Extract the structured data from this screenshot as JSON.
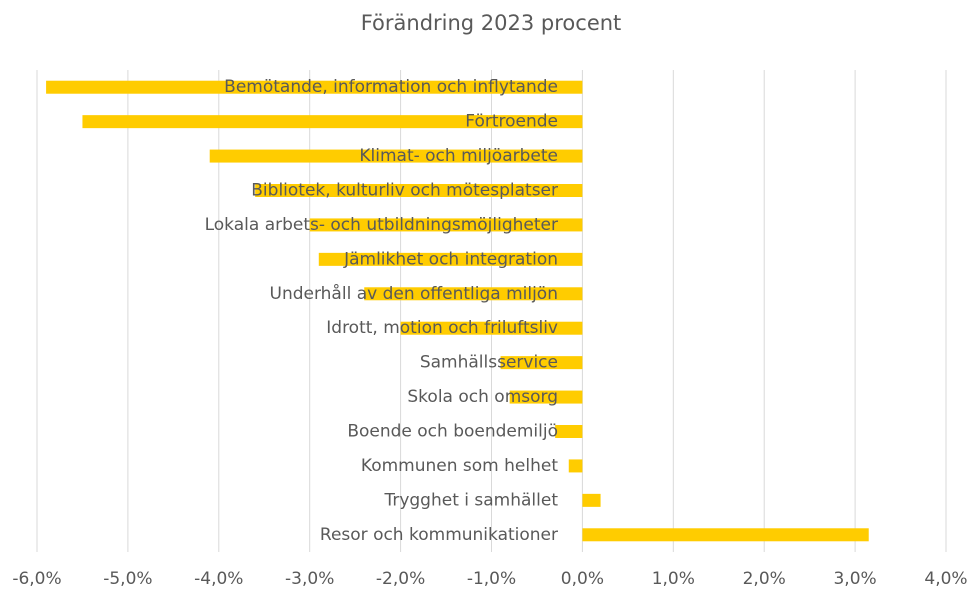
{
  "chart_data": {
    "type": "hbar",
    "title": "Förändring 2023 procent",
    "categories": [
      "Bemötande, information och inflytande",
      "Förtroende",
      "Klimat- och miljöarbete",
      "Bibliotek, kulturliv och mötesplatser",
      "Lokala arbets- och utbildningsmöjligheter",
      "Jämlikhet och integration",
      "Underhåll av den offentliga miljön",
      "Idrott, motion och friluftsliv",
      "Samhällsservice",
      "Skola och omsorg",
      "Boende och boendemiljö",
      "Kommunen som helhet",
      "Trygghet i samhället",
      "Resor och kommunikationer"
    ],
    "values": [
      -5.9,
      -5.5,
      -4.1,
      -3.6,
      -3.0,
      -2.9,
      -2.4,
      -2.0,
      -0.9,
      -0.8,
      -0.3,
      -0.15,
      0.2,
      3.15
    ],
    "color": "#ffcc00",
    "xlim": [
      -6,
      4
    ],
    "xticks": [
      {
        "value": -6,
        "label": "-6,0%"
      },
      {
        "value": -5,
        "label": "-5,0%"
      },
      {
        "value": -4,
        "label": "-4,0%"
      },
      {
        "value": -3,
        "label": "-3,0%"
      },
      {
        "value": -2,
        "label": "-2,0%"
      },
      {
        "value": -1,
        "label": "-1,0%"
      },
      {
        "value": 0,
        "label": "0,0%"
      },
      {
        "value": 1,
        "label": "1,0%"
      },
      {
        "value": 2,
        "label": "2,0%"
      },
      {
        "value": 3,
        "label": "3,0%"
      },
      {
        "value": 4,
        "label": "4,0%"
      }
    ],
    "grid": true
  }
}
